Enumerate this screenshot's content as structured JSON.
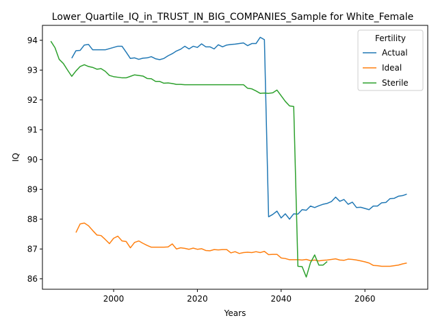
{
  "chart_data": {
    "type": "line",
    "title": "Lower_Quartile_IQ_in_TRUST_IN_BIG_COMPANIES_Sample for White_Female",
    "xlabel": "Years",
    "ylabel": "IQ",
    "xlim": [
      1983,
      2075
    ],
    "ylim": [
      85.65,
      94.5
    ],
    "xticks": [
      2000,
      2020,
      2040,
      2060
    ],
    "yticks": [
      86,
      87,
      88,
      89,
      90,
      91,
      92,
      93,
      94
    ],
    "grid": false,
    "legend": {
      "title": "Fertility",
      "placement": "upper right"
    },
    "series": [
      {
        "name": "Actual",
        "color": "#1f77b4",
        "x": [
          1990,
          1991,
          1992,
          1993,
          1994,
          1995,
          1996,
          1997,
          1998,
          1999,
          2000,
          2001,
          2002,
          2003,
          2004,
          2005,
          2006,
          2007,
          2008,
          2009,
          2010,
          2011,
          2012,
          2013,
          2014,
          2015,
          2016,
          2017,
          2018,
          2019,
          2020,
          2021,
          2022,
          2023,
          2024,
          2025,
          2026,
          2027,
          2028,
          2029,
          2030,
          2031,
          2032,
          2033,
          2034,
          2035,
          2036,
          2037,
          2038,
          2039,
          2040,
          2041,
          2042,
          2043,
          2044,
          2045,
          2046,
          2047,
          2048,
          2049,
          2050,
          2051,
          2052,
          2053,
          2054,
          2055,
          2056,
          2057,
          2058,
          2059,
          2060,
          2061,
          2062,
          2063,
          2064,
          2065,
          2066,
          2067,
          2068,
          2069,
          2070
        ],
        "y": [
          93.4,
          93.65,
          93.66,
          93.84,
          93.86,
          93.68,
          93.68,
          93.68,
          93.68,
          93.72,
          93.76,
          93.8,
          93.8,
          93.6,
          93.39,
          93.41,
          93.36,
          93.4,
          93.41,
          93.45,
          93.38,
          93.35,
          93.39,
          93.48,
          93.55,
          93.64,
          93.7,
          93.8,
          93.71,
          93.8,
          93.76,
          93.88,
          93.78,
          93.78,
          93.71,
          93.85,
          93.78,
          93.84,
          93.86,
          93.87,
          93.89,
          93.91,
          93.82,
          93.89,
          93.89,
          94.1,
          94.02,
          88.08,
          88.16,
          88.27,
          88.04,
          88.18,
          88.0,
          88.18,
          88.17,
          88.32,
          88.3,
          88.44,
          88.39,
          88.45,
          88.5,
          88.53,
          88.59,
          88.74,
          88.6,
          88.66,
          88.5,
          88.57,
          88.39,
          88.4,
          88.36,
          88.32,
          88.44,
          88.44,
          88.55,
          88.56,
          88.69,
          88.7,
          88.77,
          88.79,
          88.84
        ]
      },
      {
        "name": "Ideal",
        "color": "#ff7f0e",
        "x": [
          1991,
          1992,
          1993,
          1994,
          1995,
          1996,
          1997,
          1998,
          1999,
          2000,
          2001,
          2002,
          2003,
          2004,
          2005,
          2006,
          2007,
          2008,
          2009,
          2010,
          2011,
          2012,
          2013,
          2014,
          2015,
          2016,
          2017,
          2018,
          2019,
          2020,
          2021,
          2022,
          2023,
          2024,
          2025,
          2026,
          2027,
          2028,
          2029,
          2030,
          2031,
          2032,
          2033,
          2034,
          2035,
          2036,
          2037,
          2038,
          2039,
          2040,
          2041,
          2042,
          2043,
          2044,
          2045,
          2046,
          2047,
          2048,
          2049,
          2050,
          2051,
          2052,
          2053,
          2054,
          2055,
          2056,
          2057,
          2058,
          2059,
          2060,
          2061,
          2062,
          2063,
          2064,
          2065,
          2066,
          2067,
          2068,
          2069,
          2070
        ],
        "y": [
          87.55,
          87.84,
          87.87,
          87.78,
          87.62,
          87.47,
          87.45,
          87.32,
          87.18,
          87.36,
          87.43,
          87.27,
          87.25,
          87.04,
          87.22,
          87.27,
          87.19,
          87.12,
          87.06,
          87.06,
          87.06,
          87.06,
          87.07,
          87.17,
          87.0,
          87.04,
          87.02,
          86.99,
          87.03,
          86.99,
          87.01,
          86.95,
          86.94,
          86.98,
          86.97,
          86.98,
          86.98,
          86.87,
          86.91,
          86.85,
          86.88,
          86.89,
          86.88,
          86.91,
          86.88,
          86.92,
          86.81,
          86.82,
          86.82,
          86.7,
          86.68,
          86.64,
          86.64,
          86.64,
          86.63,
          86.65,
          86.61,
          86.63,
          86.6,
          86.62,
          86.63,
          86.65,
          86.67,
          86.63,
          86.62,
          86.66,
          86.65,
          86.63,
          86.6,
          86.57,
          86.53,
          86.45,
          86.44,
          86.42,
          86.42,
          86.42,
          86.44,
          86.46,
          86.5,
          86.53
        ]
      },
      {
        "name": "Sterile",
        "color": "#2ca02c",
        "x": [
          1985,
          1986,
          1987,
          1988,
          1989,
          1990,
          1991,
          1992,
          1993,
          1994,
          1995,
          1996,
          1997,
          1998,
          1999,
          2000,
          2001,
          2002,
          2003,
          2004,
          2005,
          2006,
          2007,
          2008,
          2009,
          2010,
          2011,
          2012,
          2013,
          2014,
          2015,
          2016,
          2017,
          2018,
          2019,
          2020,
          2021,
          2022,
          2023,
          2024,
          2025,
          2026,
          2027,
          2028,
          2029,
          2030,
          2031,
          2032,
          2033,
          2034,
          2035,
          2036,
          2037,
          2038,
          2039,
          2040,
          2041,
          2042,
          2043,
          2044,
          2045,
          2046,
          2047,
          2048,
          2049,
          2050,
          2051
        ],
        "y": [
          93.97,
          93.75,
          93.36,
          93.22,
          93.0,
          92.79,
          92.97,
          93.12,
          93.18,
          93.12,
          93.09,
          93.03,
          93.05,
          92.96,
          92.82,
          92.78,
          92.76,
          92.74,
          92.74,
          92.79,
          92.84,
          92.82,
          92.8,
          92.72,
          92.71,
          92.62,
          92.62,
          92.56,
          92.57,
          92.55,
          92.52,
          92.52,
          92.51,
          92.51,
          92.51,
          92.51,
          92.51,
          92.51,
          92.51,
          92.51,
          92.51,
          92.51,
          92.51,
          92.51,
          92.51,
          92.51,
          92.51,
          92.39,
          92.37,
          92.3,
          92.22,
          92.23,
          92.22,
          92.24,
          92.33,
          92.14,
          91.95,
          91.8,
          91.78,
          86.42,
          86.41,
          86.06,
          86.54,
          86.8,
          86.46,
          86.46,
          86.58
        ]
      }
    ]
  }
}
